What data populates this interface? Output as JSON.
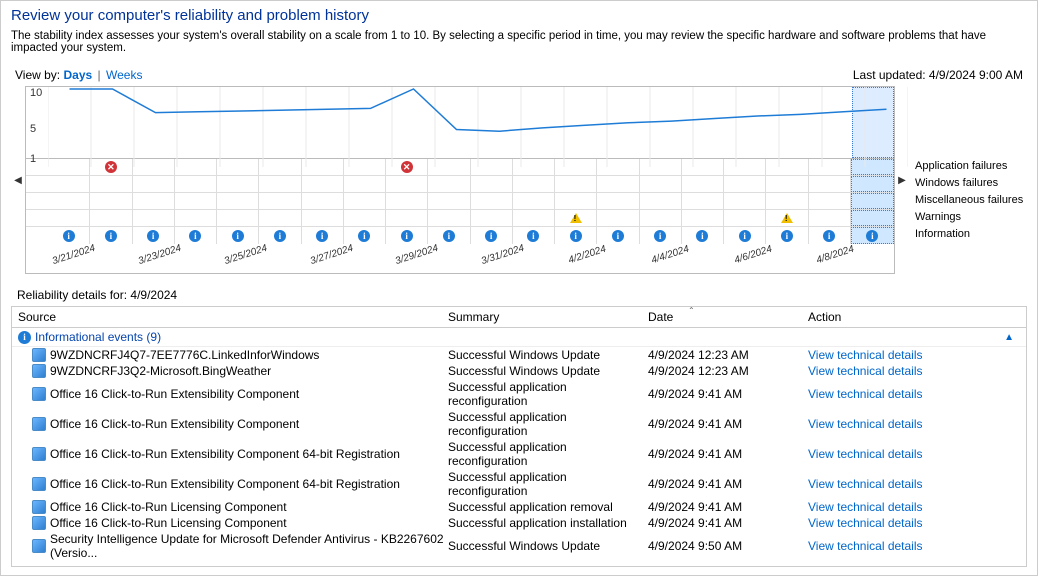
{
  "title": "Review your computer's reliability and problem history",
  "subtitle": "The stability index assesses your system's overall stability on a scale from 1 to 10. By selecting a specific period in time, you may review the specific hardware and software problems that have impacted your system.",
  "view_by_label": "View by:",
  "view_days": "Days",
  "view_weeks": "Weeks",
  "last_updated_label": "Last updated: ",
  "last_updated_value": "4/9/2024 9:00 AM",
  "chart": {
    "ylabels": [
      "10",
      "5",
      "1"
    ],
    "ylim": [
      1,
      10
    ],
    "n_cols": 20,
    "selected_col": 19,
    "line_color": "#1e7cd6",
    "highlight_fill": "#cfe8ff",
    "line_values": [
      10,
      10,
      7.2,
      7.3,
      7.4,
      7.5,
      7.6,
      7.7,
      10,
      5.2,
      5.0,
      5.4,
      5.7,
      6.0,
      6.2,
      6.5,
      6.8,
      7.0,
      7.3,
      7.6
    ],
    "date_labels": [
      "3/21/2024",
      "",
      "3/23/2024",
      "",
      "3/25/2024",
      "",
      "3/27/2024",
      "",
      "3/29/2024",
      "",
      "3/31/2024",
      "",
      "4/2/2024",
      "",
      "4/4/2024",
      "",
      "4/6/2024",
      "",
      "4/8/2024",
      ""
    ],
    "row_categories": [
      "Application failures",
      "Windows failures",
      "Miscellaneous failures",
      "Warnings",
      "Information"
    ],
    "markers": {
      "app_failures_cols": [
        1,
        8
      ],
      "warnings_cols": [
        12,
        17
      ],
      "info_cols": [
        0,
        1,
        2,
        3,
        4,
        5,
        6,
        7,
        8,
        9,
        10,
        11,
        12,
        13,
        14,
        15,
        16,
        17,
        18,
        19
      ]
    }
  },
  "details_for_label": "Reliability details for: ",
  "details_for_date": "4/9/2024",
  "columns": {
    "source": "Source",
    "summary": "Summary",
    "date": "Date",
    "action": "Action"
  },
  "group": {
    "label": "Informational events (9)"
  },
  "action_link_text": "View technical details",
  "rows": [
    {
      "source": "9WZDNCRFJ4Q7-7EE7776C.LinkedInforWindows",
      "summary": "Successful Windows Update",
      "date": "4/9/2024 12:23 AM"
    },
    {
      "source": "9WZDNCRFJ3Q2-Microsoft.BingWeather",
      "summary": "Successful Windows Update",
      "date": "4/9/2024 12:23 AM"
    },
    {
      "source": "Office 16 Click-to-Run Extensibility Component",
      "summary": "Successful application reconfiguration",
      "date": "4/9/2024 9:41 AM"
    },
    {
      "source": "Office 16 Click-to-Run Extensibility Component",
      "summary": "Successful application reconfiguration",
      "date": "4/9/2024 9:41 AM"
    },
    {
      "source": "Office 16 Click-to-Run Extensibility Component 64-bit Registration",
      "summary": "Successful application reconfiguration",
      "date": "4/9/2024 9:41 AM"
    },
    {
      "source": "Office 16 Click-to-Run Extensibility Component 64-bit Registration",
      "summary": "Successful application reconfiguration",
      "date": "4/9/2024 9:41 AM"
    },
    {
      "source": "Office 16 Click-to-Run Licensing Component",
      "summary": "Successful application removal",
      "date": "4/9/2024 9:41 AM"
    },
    {
      "source": "Office 16 Click-to-Run Licensing Component",
      "summary": "Successful application installation",
      "date": "4/9/2024 9:41 AM"
    },
    {
      "source": "Security Intelligence Update for Microsoft Defender Antivirus - KB2267602 (Versio...",
      "summary": "Successful Windows Update",
      "date": "4/9/2024 9:50 AM"
    }
  ]
}
